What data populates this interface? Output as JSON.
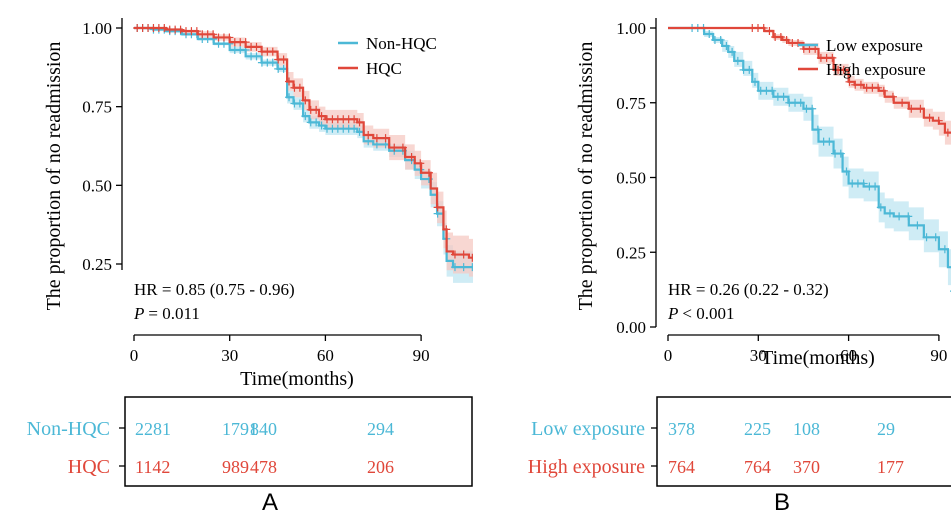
{
  "colors": {
    "series_a": "#4cb8d6",
    "series_b": "#e0473a",
    "band_a": "#bfe6f1",
    "band_b": "#f6c9c3",
    "axis": "#000000"
  },
  "chart_data": [
    {
      "type": "line",
      "panel_label": "A",
      "xlabel": "Time(months)",
      "ylabel": "The proportion of no readmission",
      "xlim": [
        0,
        113
      ],
      "ylim": [
        0.15,
        1.02
      ],
      "xticks": [
        "0",
        "30",
        "60",
        "90"
      ],
      "xtick_values": [
        0,
        30,
        60,
        90
      ],
      "yticks": [
        "0.25",
        "0.50",
        "0.75",
        "1.00"
      ],
      "ytick_values": [
        0.25,
        0.5,
        0.75,
        1.0
      ],
      "legend": {
        "placement": "top-right",
        "entries": [
          "Non-HQC",
          "HQC"
        ]
      },
      "annotation": {
        "hr": "HR = 0.85  (0.75  -  0.96)",
        "p_symbol": "P",
        "p_value": "= 0.011"
      },
      "series": [
        {
          "name": "Non-HQC",
          "x": [
            0,
            3,
            6,
            10,
            15,
            20,
            25,
            30,
            35,
            40,
            45,
            48,
            50,
            53,
            55,
            58,
            60,
            65,
            70,
            72,
            75,
            80,
            85,
            88,
            90,
            93,
            95,
            97,
            98,
            100,
            105,
            110
          ],
          "y": [
            1.0,
            1.0,
            0.995,
            0.99,
            0.98,
            0.965,
            0.95,
            0.93,
            0.91,
            0.89,
            0.87,
            0.78,
            0.76,
            0.72,
            0.7,
            0.69,
            0.68,
            0.68,
            0.67,
            0.64,
            0.63,
            0.61,
            0.58,
            0.55,
            0.52,
            0.47,
            0.41,
            0.33,
            0.26,
            0.24,
            0.24,
            0.24
          ],
          "lower": [
            1.0,
            0.995,
            0.99,
            0.985,
            0.975,
            0.96,
            0.945,
            0.92,
            0.9,
            0.88,
            0.86,
            0.76,
            0.74,
            0.7,
            0.68,
            0.67,
            0.66,
            0.66,
            0.65,
            0.62,
            0.61,
            0.59,
            0.55,
            0.52,
            0.49,
            0.43,
            0.37,
            0.28,
            0.21,
            0.19,
            0.19,
            0.19
          ],
          "upper": [
            1.0,
            1.0,
            1.0,
            0.995,
            0.985,
            0.97,
            0.955,
            0.94,
            0.92,
            0.9,
            0.88,
            0.8,
            0.78,
            0.74,
            0.72,
            0.71,
            0.7,
            0.7,
            0.69,
            0.66,
            0.65,
            0.63,
            0.61,
            0.58,
            0.55,
            0.51,
            0.45,
            0.38,
            0.31,
            0.29,
            0.29,
            0.29
          ]
        },
        {
          "name": "HQC",
          "x": [
            0,
            3,
            6,
            10,
            15,
            20,
            25,
            30,
            35,
            40,
            45,
            48,
            50,
            53,
            55,
            58,
            60,
            65,
            70,
            72,
            75,
            80,
            85,
            88,
            90,
            93,
            95,
            97,
            98,
            100,
            105,
            110,
            111
          ],
          "y": [
            1.0,
            1.0,
            1.0,
            0.995,
            0.99,
            0.98,
            0.97,
            0.955,
            0.94,
            0.925,
            0.9,
            0.83,
            0.81,
            0.77,
            0.74,
            0.72,
            0.71,
            0.71,
            0.7,
            0.66,
            0.65,
            0.62,
            0.59,
            0.57,
            0.54,
            0.49,
            0.43,
            0.36,
            0.29,
            0.28,
            0.27,
            0.25,
            0.17
          ],
          "lower": [
            1.0,
            1.0,
            0.995,
            0.99,
            0.985,
            0.97,
            0.96,
            0.94,
            0.925,
            0.91,
            0.88,
            0.8,
            0.78,
            0.74,
            0.71,
            0.69,
            0.68,
            0.68,
            0.67,
            0.63,
            0.62,
            0.58,
            0.55,
            0.53,
            0.5,
            0.44,
            0.38,
            0.3,
            0.23,
            0.22,
            0.21,
            0.18,
            0.16
          ],
          "upper": [
            1.0,
            1.0,
            1.0,
            1.0,
            0.995,
            0.99,
            0.98,
            0.97,
            0.955,
            0.94,
            0.92,
            0.86,
            0.84,
            0.8,
            0.77,
            0.75,
            0.74,
            0.74,
            0.73,
            0.69,
            0.68,
            0.66,
            0.63,
            0.61,
            0.58,
            0.54,
            0.48,
            0.42,
            0.35,
            0.34,
            0.33,
            0.32,
            0.3
          ]
        }
      ],
      "risk_table": {
        "rows": [
          {
            "label": "Non-HQC",
            "counts": [
              2281,
              1791,
              840,
              294
            ],
            "at": [
              0,
              30,
              48,
              78
            ]
          },
          {
            "label": "HQC",
            "counts": [
              1142,
              989,
              478,
              206
            ],
            "at": [
              0,
              30,
              48,
              78
            ]
          }
        ]
      }
    },
    {
      "type": "line",
      "panel_label": "B",
      "xlabel": "Time(months)",
      "ylabel": "The proportion of no readmission",
      "xlim": [
        0,
        113
      ],
      "ylim": [
        -0.02,
        1.02
      ],
      "xticks": [
        "0",
        "30",
        "60",
        "90"
      ],
      "xtick_values": [
        0,
        30,
        60,
        90
      ],
      "yticks": [
        "0.00",
        "0.25",
        "0.50",
        "0.75",
        "1.00"
      ],
      "ytick_values": [
        0,
        0.25,
        0.5,
        0.75,
        1.0
      ],
      "legend": {
        "placement": "top-right",
        "entries": [
          "Low exposure",
          "High exposure"
        ]
      },
      "annotation": {
        "hr": "HR = 0.26  (0.22  -  0.32)",
        "p_symbol": "P",
        "p_value": "< 0.001"
      },
      "series": [
        {
          "name": "Low exposure",
          "x": [
            0,
            10,
            12,
            15,
            18,
            20,
            22,
            25,
            28,
            30,
            35,
            40,
            45,
            48,
            50,
            55,
            58,
            60,
            65,
            70,
            72,
            75,
            80,
            85,
            90,
            93,
            95,
            97,
            98,
            100
          ],
          "y": [
            1.0,
            1.0,
            0.98,
            0.96,
            0.94,
            0.92,
            0.89,
            0.86,
            0.82,
            0.79,
            0.77,
            0.75,
            0.73,
            0.66,
            0.62,
            0.58,
            0.52,
            0.48,
            0.47,
            0.4,
            0.38,
            0.37,
            0.34,
            0.3,
            0.26,
            0.2,
            0.12,
            0.06,
            0.03,
            0.03
          ],
          "lower": [
            1.0,
            1.0,
            0.97,
            0.95,
            0.92,
            0.9,
            0.87,
            0.84,
            0.8,
            0.76,
            0.74,
            0.72,
            0.69,
            0.61,
            0.57,
            0.53,
            0.47,
            0.43,
            0.42,
            0.35,
            0.33,
            0.32,
            0.29,
            0.25,
            0.2,
            0.14,
            0.06,
            0.01,
            0.0,
            0.0
          ],
          "upper": [
            1.0,
            1.0,
            0.99,
            0.97,
            0.96,
            0.94,
            0.92,
            0.89,
            0.85,
            0.82,
            0.8,
            0.78,
            0.77,
            0.71,
            0.67,
            0.63,
            0.57,
            0.53,
            0.52,
            0.45,
            0.43,
            0.42,
            0.4,
            0.36,
            0.32,
            0.26,
            0.18,
            0.12,
            0.08,
            0.08
          ]
        },
        {
          "name": "High exposure",
          "x": [
            0,
            10,
            20,
            30,
            32,
            35,
            38,
            40,
            45,
            50,
            55,
            60,
            62,
            65,
            70,
            72,
            75,
            80,
            85,
            88,
            90,
            92,
            95,
            97,
            98,
            100,
            105,
            110,
            113
          ],
          "y": [
            1.0,
            1.0,
            1.0,
            1.0,
            0.99,
            0.97,
            0.96,
            0.95,
            0.93,
            0.9,
            0.86,
            0.82,
            0.81,
            0.8,
            0.79,
            0.77,
            0.75,
            0.73,
            0.7,
            0.69,
            0.68,
            0.65,
            0.58,
            0.5,
            0.43,
            0.42,
            0.39,
            0.33,
            0.24
          ],
          "lower": [
            1.0,
            1.0,
            1.0,
            1.0,
            0.985,
            0.96,
            0.95,
            0.94,
            0.91,
            0.88,
            0.84,
            0.8,
            0.79,
            0.78,
            0.77,
            0.75,
            0.73,
            0.7,
            0.67,
            0.66,
            0.64,
            0.61,
            0.53,
            0.44,
            0.37,
            0.35,
            0.31,
            0.24,
            0.14
          ],
          "upper": [
            1.0,
            1.0,
            1.0,
            1.0,
            0.995,
            0.98,
            0.97,
            0.96,
            0.95,
            0.92,
            0.88,
            0.84,
            0.83,
            0.82,
            0.81,
            0.79,
            0.77,
            0.76,
            0.73,
            0.72,
            0.72,
            0.69,
            0.63,
            0.56,
            0.49,
            0.49,
            0.47,
            0.42,
            0.34
          ]
        }
      ],
      "risk_table": {
        "rows": [
          {
            "label": "Low exposure",
            "counts": [
              378,
              225,
              108,
              29
            ],
            "at": [
              0,
              30,
              48,
              78
            ]
          },
          {
            "label": "High exposure",
            "counts": [
              764,
              764,
              370,
              177
            ],
            "at": [
              0,
              30,
              48,
              78
            ]
          }
        ]
      }
    }
  ]
}
